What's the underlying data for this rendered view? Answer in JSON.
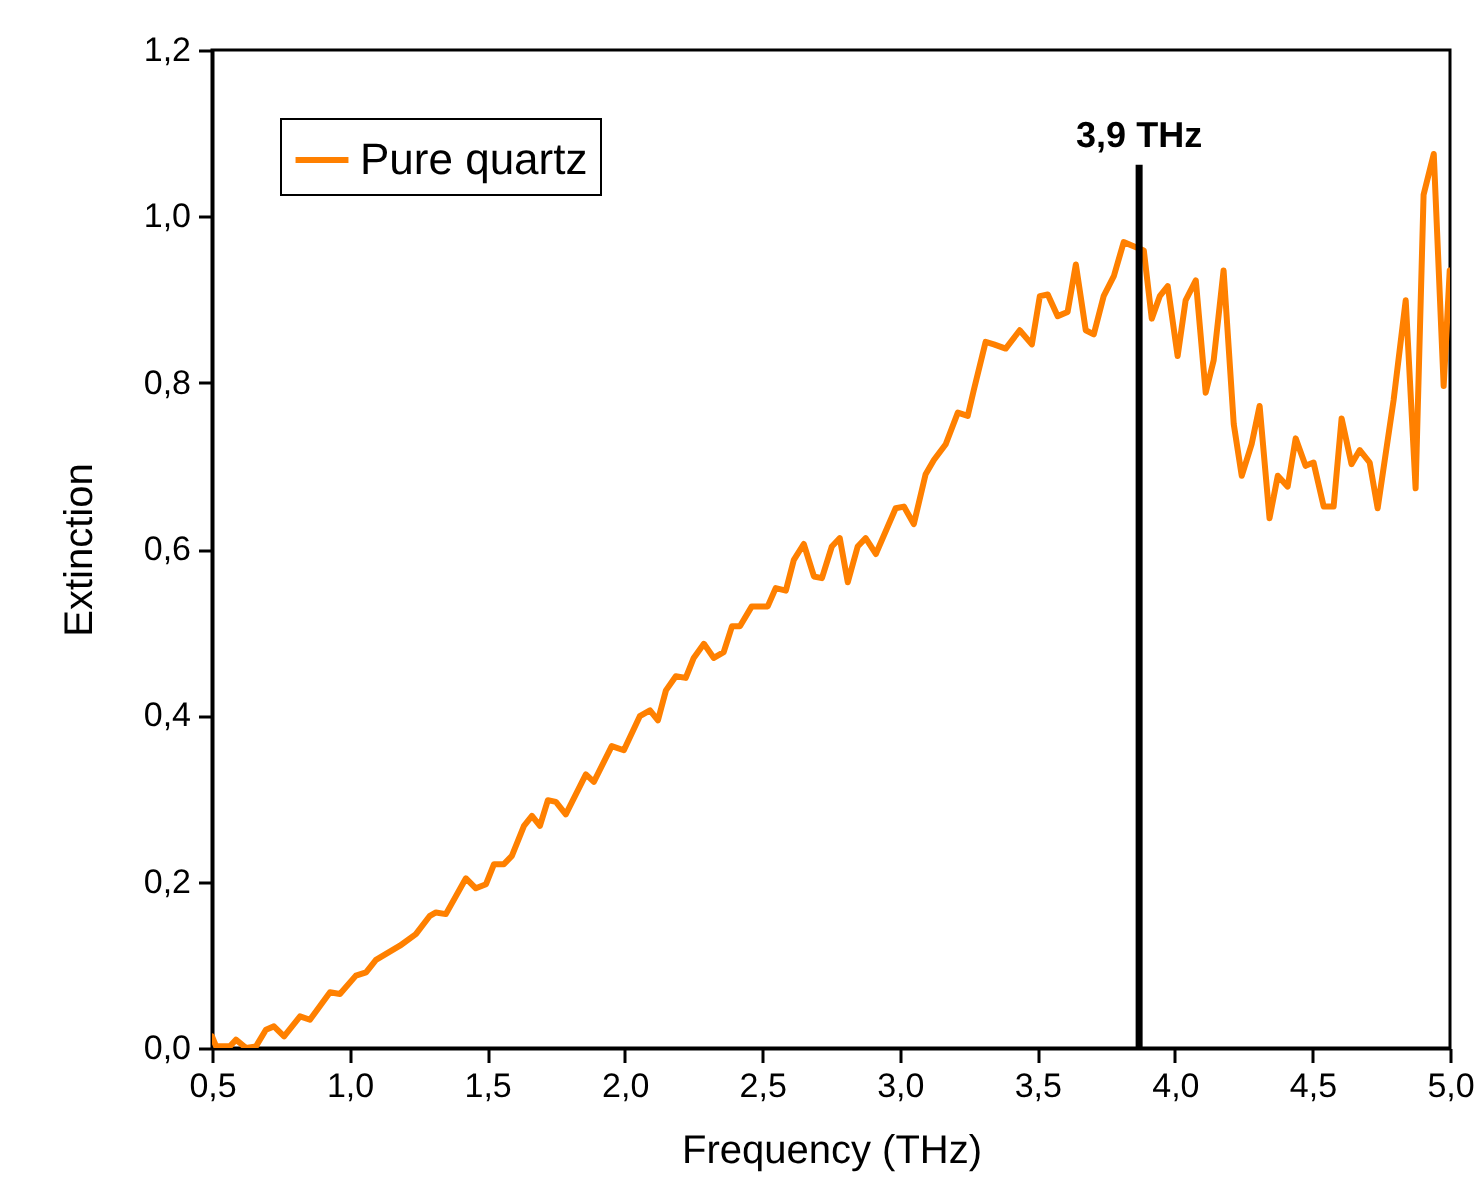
{
  "chart_data": {
    "type": "line",
    "xlabel": "Frequency (THz)",
    "ylabel": "Extinction",
    "x": [
      0.5,
      0.515,
      0.565,
      0.587,
      0.624,
      0.66,
      0.696,
      0.725,
      0.762,
      0.82,
      0.856,
      0.929,
      0.965,
      1.023,
      1.06,
      1.096,
      1.183,
      1.241,
      1.292,
      1.314,
      1.35,
      1.423,
      1.459,
      1.496,
      1.525,
      1.561,
      1.59,
      1.634,
      1.663,
      1.692,
      1.721,
      1.75,
      1.786,
      1.859,
      1.888,
      1.953,
      1.997,
      2.055,
      2.092,
      2.121,
      2.15,
      2.186,
      2.222,
      2.251,
      2.288,
      2.324,
      2.36,
      2.39,
      2.419,
      2.462,
      2.52,
      2.549,
      2.586,
      2.615,
      2.651,
      2.688,
      2.717,
      2.753,
      2.782,
      2.811,
      2.847,
      2.876,
      2.913,
      2.985,
      3.015,
      3.051,
      3.094,
      3.124,
      3.167,
      3.211,
      3.247,
      3.269,
      3.312,
      3.342,
      3.385,
      3.436,
      3.48,
      3.509,
      3.538,
      3.574,
      3.61,
      3.64,
      3.676,
      3.705,
      3.741,
      3.778,
      3.814,
      3.85,
      3.887,
      3.916,
      3.945,
      3.974,
      4.01,
      4.039,
      4.076,
      4.112,
      4.141,
      4.177,
      4.214,
      4.243,
      4.279,
      4.308,
      4.344,
      4.374,
      4.41,
      4.439,
      4.475,
      4.504,
      4.541,
      4.577,
      4.606,
      4.642,
      4.672,
      4.708,
      4.737,
      4.795,
      4.839,
      4.875,
      4.904,
      4.941,
      4.977,
      4.999
    ],
    "series": [
      {
        "name": "Pure quartz",
        "color": "#ff8000",
        "values": [
          0.014,
          0.002,
          0.002,
          0.01,
          0,
          0.002,
          0.022,
          0.026,
          0.014,
          0.038,
          0.034,
          0.067,
          0.065,
          0.087,
          0.091,
          0.106,
          0.123,
          0.137,
          0.159,
          0.163,
          0.161,
          0.204,
          0.192,
          0.197,
          0.221,
          0.221,
          0.231,
          0.267,
          0.279,
          0.267,
          0.298,
          0.296,
          0.281,
          0.329,
          0.32,
          0.363,
          0.358,
          0.399,
          0.406,
          0.394,
          0.43,
          0.447,
          0.445,
          0.469,
          0.486,
          0.469,
          0.476,
          0.507,
          0.507,
          0.531,
          0.531,
          0.553,
          0.55,
          0.587,
          0.606,
          0.567,
          0.565,
          0.603,
          0.613,
          0.56,
          0.603,
          0.613,
          0.594,
          0.649,
          0.651,
          0.63,
          0.69,
          0.707,
          0.726,
          0.764,
          0.76,
          0.791,
          0.849,
          0.846,
          0.841,
          0.863,
          0.846,
          0.904,
          0.906,
          0.88,
          0.885,
          0.942,
          0.863,
          0.858,
          0.904,
          0.928,
          0.969,
          0.964,
          0.959,
          0.877,
          0.904,
          0.916,
          0.832,
          0.899,
          0.923,
          0.788,
          0.827,
          0.935,
          0.75,
          0.688,
          0.726,
          0.772,
          0.637,
          0.688,
          0.675,
          0.733,
          0.7,
          0.704,
          0.651,
          0.651,
          0.757,
          0.702,
          0.719,
          0.704,
          0.649,
          0.779,
          0.899,
          0.673,
          1.026,
          1.075,
          0.796,
          0.935
        ]
      }
    ],
    "xlim": [
      0.5,
      5.0
    ],
    "xticks": [
      {
        "value": 0.5,
        "label": "0,5"
      },
      {
        "value": 1.0,
        "label": "1,0"
      },
      {
        "value": 1.5,
        "label": "1,5"
      },
      {
        "value": 2.0,
        "label": "2,0"
      },
      {
        "value": 2.5,
        "label": "2,5"
      },
      {
        "value": 3.0,
        "label": "3,0"
      },
      {
        "value": 3.5,
        "label": "3,5"
      },
      {
        "value": 4.0,
        "label": "4,0"
      },
      {
        "value": 4.5,
        "label": "4,5"
      },
      {
        "value": 5.0,
        "label": "5,0"
      }
    ],
    "ylim": [
      0,
      1.2
    ],
    "yticks": [
      {
        "value": 0,
        "label": "0,0"
      },
      {
        "value": 0.2,
        "label": "0,2"
      },
      {
        "value": 0.4,
        "label": "0,4"
      },
      {
        "value": 0.6,
        "label": "0,6"
      },
      {
        "value": 0.8,
        "label": "0,8"
      },
      {
        "value": 1.0,
        "label": "1,0"
      },
      {
        "value": 1.2,
        "label": "1,2"
      }
    ],
    "ref_lines": [
      {
        "axis": "x",
        "value": 3.87,
        "label": "3,9 THz",
        "color": "#000000"
      }
    ],
    "legend": "top left",
    "grid": false,
    "marker": "none",
    "line_style": "solid"
  }
}
